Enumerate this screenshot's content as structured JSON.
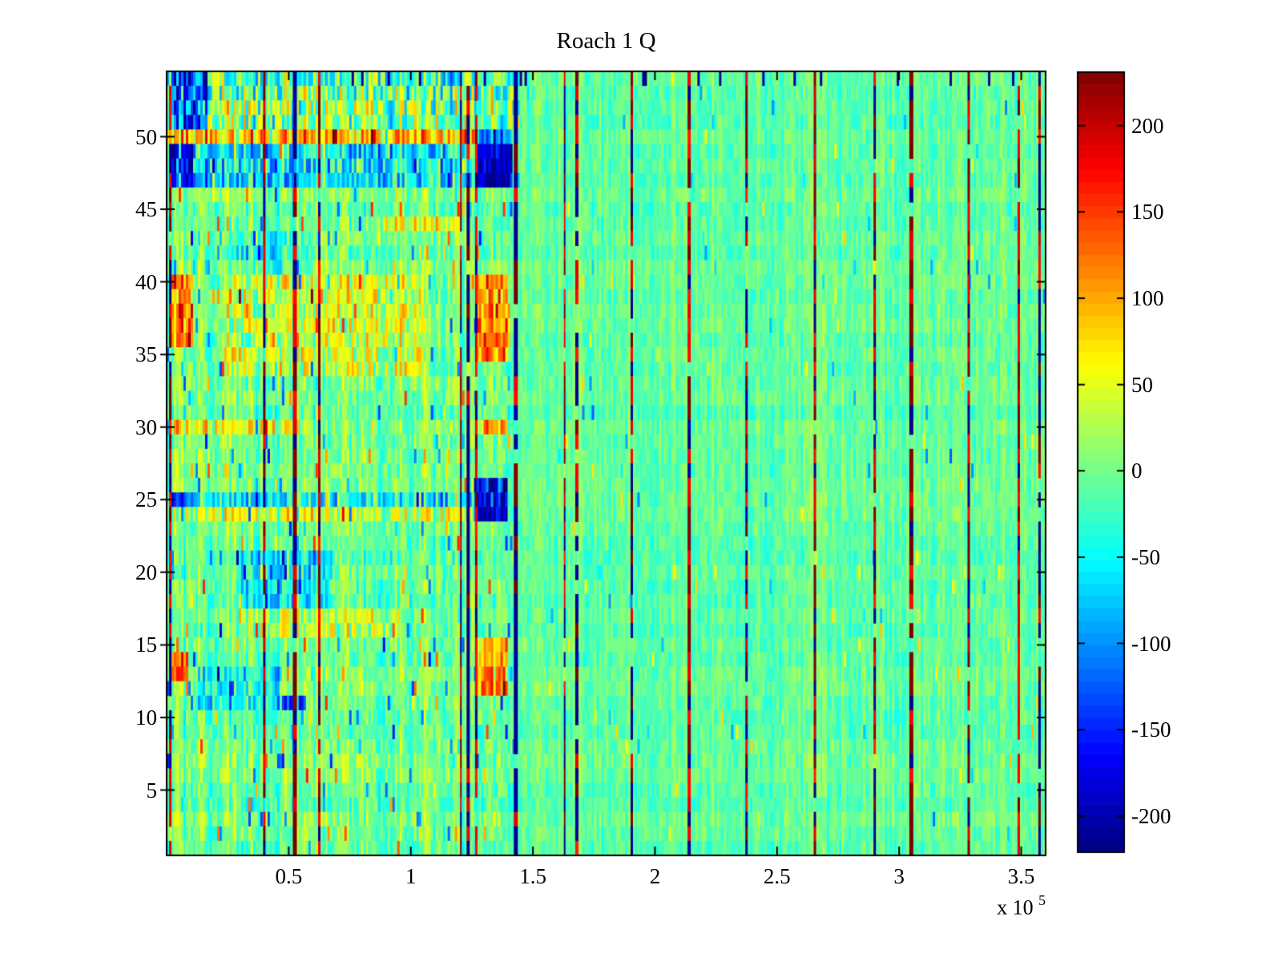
{
  "chart_data": {
    "type": "heatmap",
    "title": "Roach 1 Q",
    "x_axis": {
      "min": 0,
      "max": 3.6,
      "unit_scale": "1e5",
      "tick_values": [
        0.5,
        1,
        1.5,
        2,
        2.5,
        3,
        3.5
      ],
      "tick_labels": [
        "0.5",
        "1",
        "1.5",
        "2",
        "2.5",
        "3",
        "3.5"
      ],
      "exponent_label": "x 10",
      "exponent_power": "5"
    },
    "y_axis": {
      "min": 0.5,
      "max": 54.5,
      "rows": 54,
      "tick_values": [
        50,
        45,
        40,
        35,
        30,
        25,
        20,
        15,
        10,
        5
      ],
      "tick_labels": [
        "50",
        "45",
        "40",
        "35",
        "30",
        "25",
        "20",
        "15",
        "10",
        "5"
      ]
    },
    "colorbar": {
      "colormap": "jet",
      "levels": 64,
      "clim": [
        -221,
        231
      ],
      "tick_values": [
        200,
        150,
        100,
        50,
        0,
        -50,
        -100,
        -150,
        -200
      ],
      "tick_labels": [
        "200",
        "150",
        "100",
        "50",
        "0",
        "-50",
        "-100",
        "-150",
        "-200"
      ]
    },
    "texture": {
      "columns": 366,
      "seed": 1337,
      "left_region_xmax": 1.425,
      "left_amp": 1.55,
      "right_amp": 1.0,
      "left_bias": 2,
      "right_bias": -7,
      "left_speckle_prob": 0.05,
      "right_speckle_prob": 0.012,
      "top_band_rows": [
        51,
        54
      ],
      "top_band_xmax": 1.45,
      "top_band_row_bias": [
        8,
        10,
        -2,
        -18
      ],
      "top_row_navy_prob": 0.05
    },
    "features": [
      {
        "rows": [
          51,
          54
        ],
        "x": [
          0.02,
          0.17
        ],
        "amp": -130,
        "jitter": 30
      },
      {
        "rows": [
          50,
          50
        ],
        "x": [
          0.0,
          1.43
        ],
        "amp": 85,
        "jitter": 55
      },
      {
        "rows": [
          47,
          49
        ],
        "x": [
          0.02,
          0.11
        ],
        "amp": -175,
        "jitter": 25
      },
      {
        "rows": [
          47,
          49
        ],
        "x": [
          0.11,
          1.26
        ],
        "amp": -55,
        "jitter": 65
      },
      {
        "rows": [
          47,
          50
        ],
        "x": [
          1.27,
          1.42
        ],
        "amp": -185,
        "jitter": 25
      },
      {
        "rows": [
          44,
          44
        ],
        "x": [
          0.85,
          1.2
        ],
        "amp": 55,
        "jitter": 40
      },
      {
        "rows": [
          36,
          40
        ],
        "x": [
          0.02,
          0.11
        ],
        "amp": 110,
        "jitter": 45
      },
      {
        "rows": [
          34,
          40
        ],
        "x": [
          0.25,
          1.05
        ],
        "amp": 40,
        "jitter": 45
      },
      {
        "rows": [
          35,
          40
        ],
        "x": [
          1.27,
          1.41
        ],
        "amp": 115,
        "jitter": 45
      },
      {
        "rows": [
          41,
          43
        ],
        "x": [
          0.25,
          0.6
        ],
        "amp": -30,
        "jitter": 30
      },
      {
        "rows": [
          30,
          30
        ],
        "x": [
          0.02,
          0.55
        ],
        "amp": 60,
        "jitter": 50
      },
      {
        "rows": [
          30,
          30
        ],
        "x": [
          1.27,
          1.4
        ],
        "amp": 90,
        "jitter": 35
      },
      {
        "rows": [
          25,
          25
        ],
        "x": [
          0.02,
          0.09
        ],
        "amp": -150,
        "jitter": 25
      },
      {
        "rows": [
          25,
          25
        ],
        "x": [
          0.09,
          1.26
        ],
        "amp": -60,
        "jitter": 55
      },
      {
        "rows": [
          24,
          26
        ],
        "x": [
          1.26,
          1.4
        ],
        "amp": -175,
        "jitter": 30
      },
      {
        "rows": [
          24,
          24
        ],
        "x": [
          0.05,
          1.25
        ],
        "amp": 42,
        "jitter": 45
      },
      {
        "rows": [
          18,
          21
        ],
        "x": [
          0.28,
          0.68
        ],
        "amp": -52,
        "jitter": 45
      },
      {
        "rows": [
          16,
          17
        ],
        "x": [
          0.3,
          0.95
        ],
        "amp": 32,
        "jitter": 40
      },
      {
        "rows": [
          11,
          13
        ],
        "x": [
          0.13,
          0.47
        ],
        "amp": -48,
        "jitter": 45
      },
      {
        "rows": [
          11,
          11
        ],
        "x": [
          0.47,
          0.57
        ],
        "amp": -135,
        "jitter": 25
      },
      {
        "rows": [
          13,
          14
        ],
        "x": [
          0.02,
          0.09
        ],
        "amp": 125,
        "jitter": 40
      },
      {
        "rows": [
          12,
          15
        ],
        "x": [
          1.27,
          1.4
        ],
        "amp": 105,
        "jitter": 45
      },
      {
        "rows": [
          20,
          20
        ],
        "x": [
          0.02,
          0.08
        ],
        "amp": -55,
        "jitter": 25
      }
    ],
    "stripes": [
      {
        "x": 0.015,
        "w": 3,
        "mix": [
          0.2,
          0.5,
          0.3
        ]
      },
      {
        "x": 0.4,
        "w": 3,
        "mix": [
          0.35,
          0.45,
          0.2
        ]
      },
      {
        "x": 0.525,
        "w": 5,
        "mix": [
          0.45,
          0.25,
          0.3
        ]
      },
      {
        "x": 0.625,
        "w": 3,
        "mix": [
          0.35,
          0.45,
          0.2
        ]
      },
      {
        "x": 1.205,
        "w": 2,
        "mix": [
          0.5,
          0.3,
          0.2
        ]
      },
      {
        "x": 1.235,
        "w": 4,
        "mix": [
          0.1,
          0.15,
          0.75
        ]
      },
      {
        "x": 1.268,
        "w": 3,
        "mix": [
          0.25,
          0.55,
          0.2
        ]
      },
      {
        "x": 1.43,
        "w": 5,
        "mix": [
          0.12,
          0.13,
          0.75
        ]
      },
      {
        "x": 1.63,
        "w": 2,
        "mix": [
          0.3,
          0.3,
          0.4
        ]
      },
      {
        "x": 1.68,
        "w": 4,
        "mix": [
          0.2,
          0.25,
          0.55
        ]
      },
      {
        "x": 1.905,
        "w": 3,
        "mix": [
          0.3,
          0.25,
          0.45
        ]
      },
      {
        "x": 2.14,
        "w": 4,
        "mix": [
          0.45,
          0.35,
          0.2
        ]
      },
      {
        "x": 2.375,
        "w": 3,
        "mix": [
          0.35,
          0.3,
          0.35
        ]
      },
      {
        "x": 2.655,
        "w": 3,
        "mix": [
          0.4,
          0.4,
          0.2
        ]
      },
      {
        "x": 2.9,
        "w": 3,
        "mix": [
          0.35,
          0.3,
          0.35
        ]
      },
      {
        "x": 3.05,
        "w": 5,
        "mix": [
          0.55,
          0.25,
          0.2
        ]
      },
      {
        "x": 3.285,
        "w": 3,
        "mix": [
          0.45,
          0.35,
          0.2
        ]
      },
      {
        "x": 3.49,
        "w": 3,
        "mix": [
          0.3,
          0.55,
          0.15
        ]
      },
      {
        "x": 3.575,
        "w": 3,
        "mix": [
          0.15,
          0.2,
          0.65
        ]
      }
    ],
    "frame_color": "#000000",
    "background_color": "#ffffff"
  }
}
